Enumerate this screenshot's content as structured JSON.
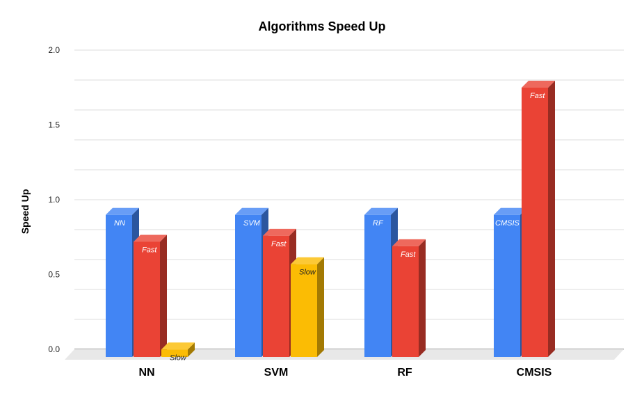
{
  "chart_data": {
    "type": "bar",
    "title": "Algorithms Speed Up",
    "xlabel": "",
    "ylabel": "Speed Up",
    "ylim": [
      0,
      2.0
    ],
    "yticks": [
      "0.0",
      "0.5",
      "1.0",
      "1.5",
      "2.0"
    ],
    "grid": true,
    "style": "3d",
    "categories": [
      "NN",
      "SVM",
      "RF",
      "CMSIS"
    ],
    "groups": [
      {
        "category": "NN",
        "bars": [
          {
            "label": "NN",
            "value": 0.95,
            "color": "#4285f4"
          },
          {
            "label": "Fast",
            "value": 0.77,
            "color": "#ea4335"
          },
          {
            "label": "Slow",
            "value": 0.05,
            "color": "#fbbc04"
          }
        ]
      },
      {
        "category": "SVM",
        "bars": [
          {
            "label": "SVM",
            "value": 0.95,
            "color": "#4285f4"
          },
          {
            "label": "Fast",
            "value": 0.81,
            "color": "#ea4335"
          },
          {
            "label": "Slow",
            "value": 0.62,
            "color": "#fbbc04"
          }
        ]
      },
      {
        "category": "RF",
        "bars": [
          {
            "label": "RF",
            "value": 0.95,
            "color": "#4285f4"
          },
          {
            "label": "Fast",
            "value": 0.74,
            "color": "#ea4335"
          }
        ]
      },
      {
        "category": "CMSIS",
        "bars": [
          {
            "label": "CMSIS",
            "value": 0.95,
            "color": "#4285f4"
          },
          {
            "label": "Fast",
            "value": 1.8,
            "color": "#ea4335"
          }
        ]
      }
    ]
  }
}
